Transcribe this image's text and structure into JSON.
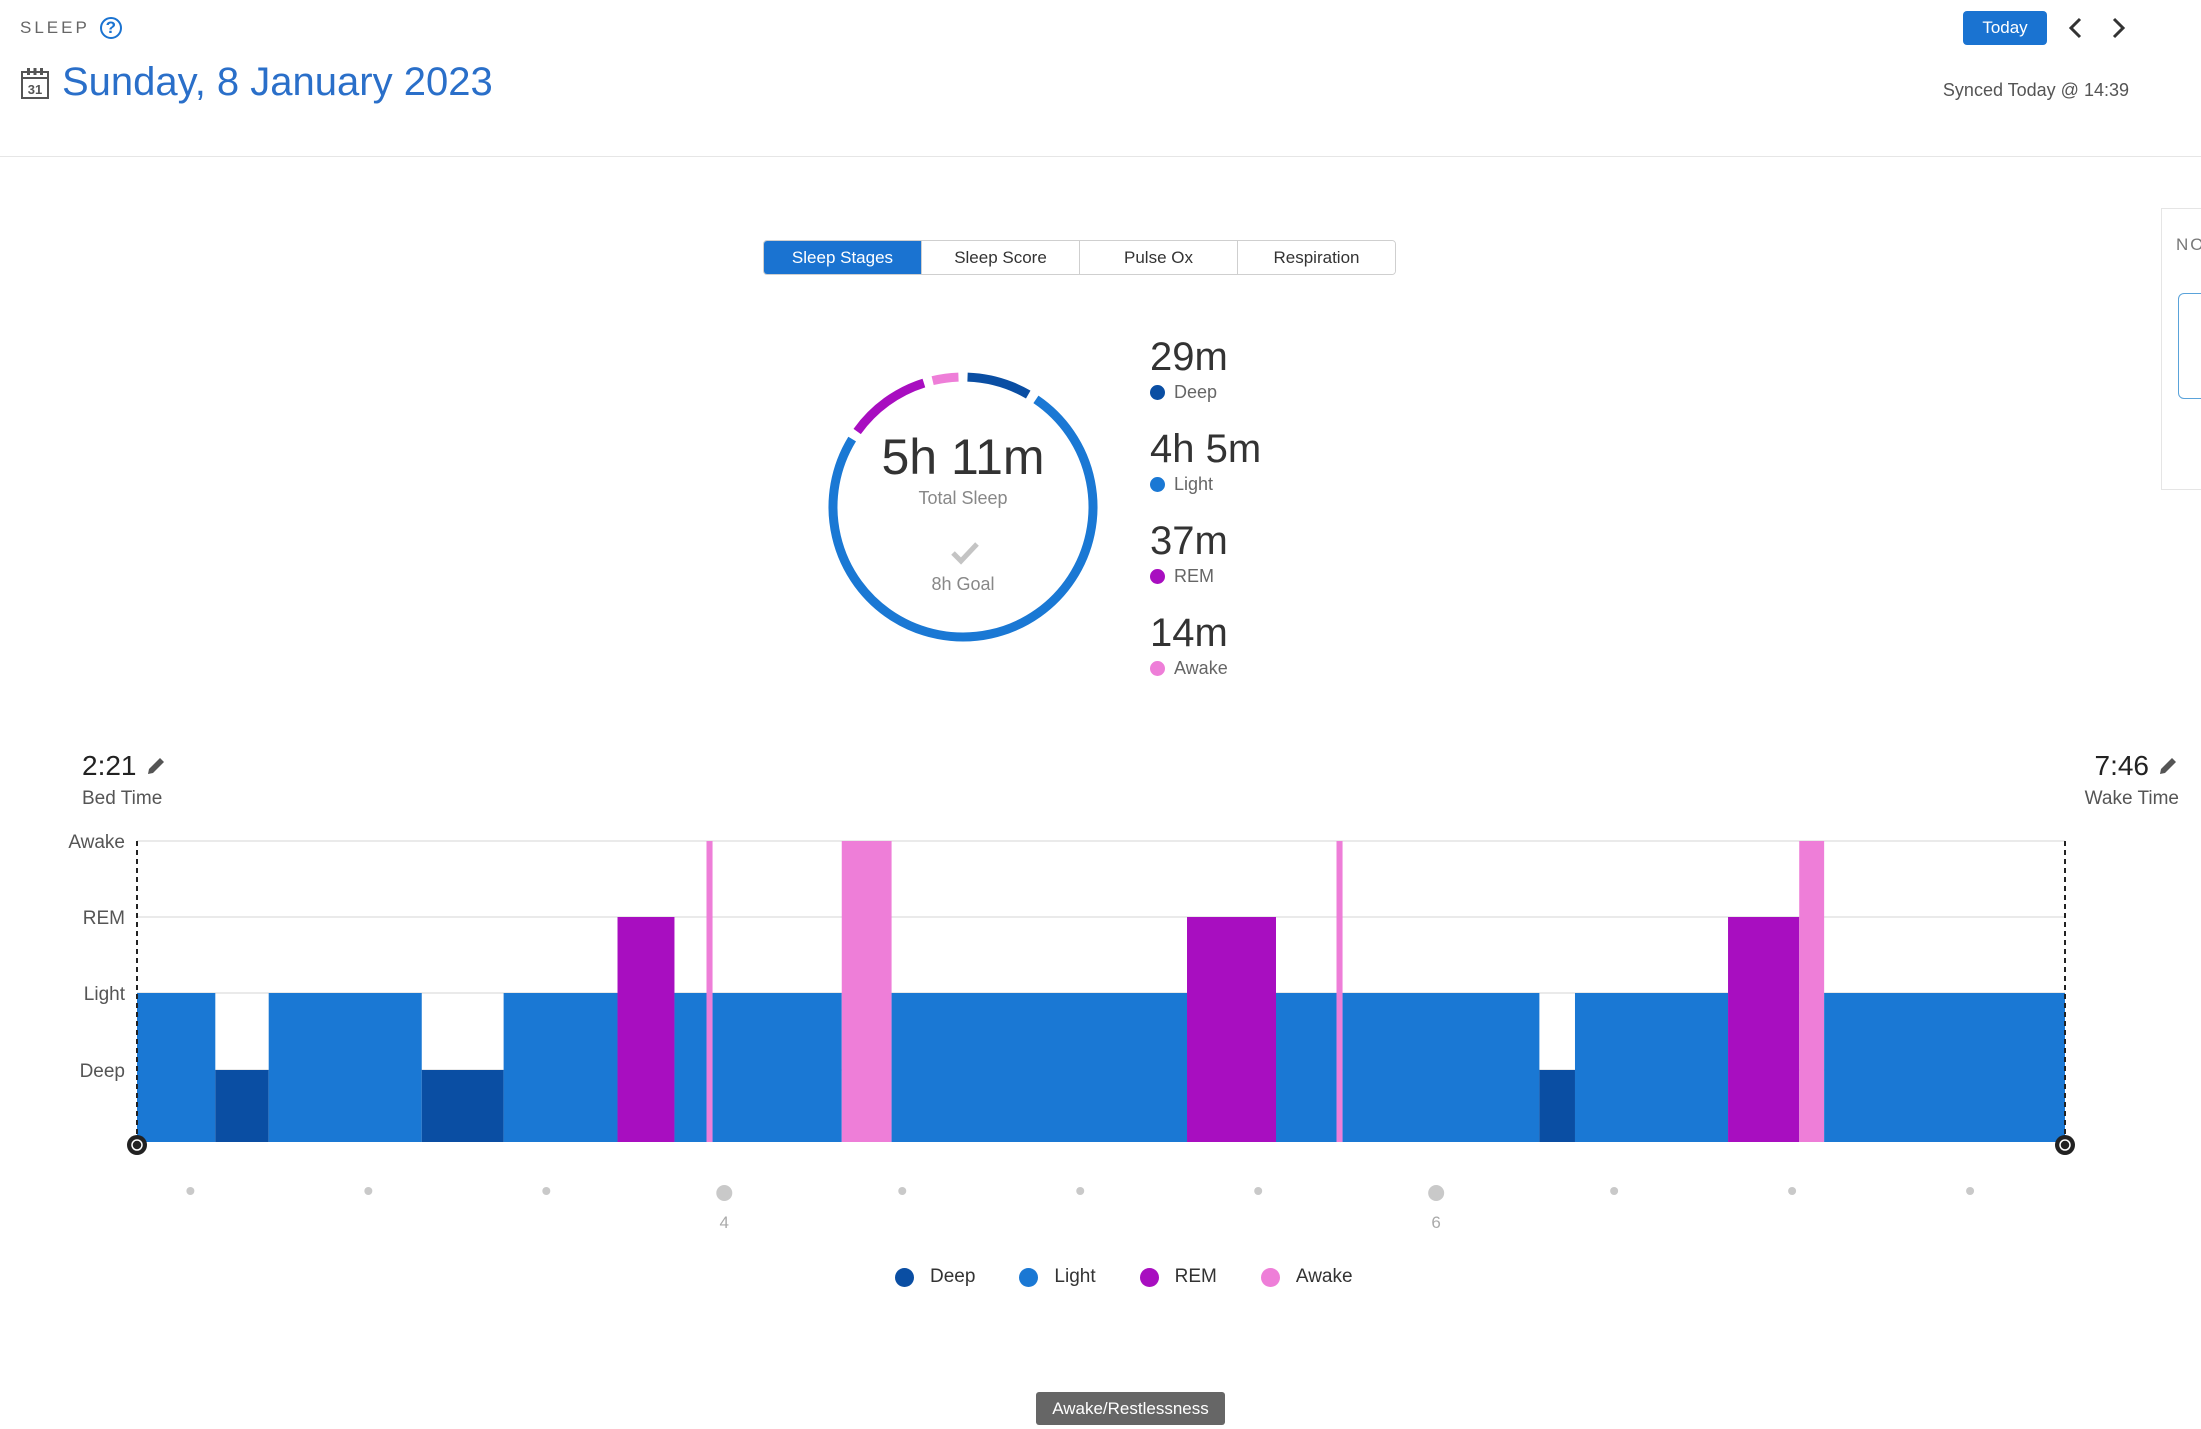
{
  "header": {
    "section_label": "SLEEP",
    "help_icon": "?",
    "calendar_day": "31",
    "date": "Sunday, 8 January 2023",
    "today_label": "Today",
    "synced": "Synced Today @ 14:39"
  },
  "tabs": [
    {
      "label": "Sleep Stages",
      "active": true
    },
    {
      "label": "Sleep Score",
      "active": false
    },
    {
      "label": "Pulse Ox",
      "active": false
    },
    {
      "label": "Respiration",
      "active": false
    }
  ],
  "right_panel": {
    "label": "NO"
  },
  "summary": {
    "total": "5h 11m",
    "total_label": "Total Sleep",
    "goal": "8h Goal",
    "stages": [
      {
        "value": "29m",
        "name": "Deep",
        "minutes": 29,
        "color": "#0a4ea3"
      },
      {
        "value": "4h 5m",
        "name": "Light",
        "minutes": 245,
        "color": "#1a78d4"
      },
      {
        "value": "37m",
        "name": "REM",
        "minutes": 37,
        "color": "#a80ec0"
      },
      {
        "value": "14m",
        "name": "Awake",
        "minutes": 14,
        "color": "#ee7ed8"
      }
    ]
  },
  "times": {
    "bed_time": "2:21",
    "bed_label": "Bed Time",
    "wake_time": "7:46",
    "wake_label": "Wake Time"
  },
  "chart_data": {
    "type": "bar",
    "levels": [
      "Deep",
      "Light",
      "REM",
      "Awake"
    ],
    "x_unit": "hours",
    "x_range": [
      2.35,
      7.7667
    ],
    "x_ticks": [
      "4",
      "6"
    ],
    "segments": [
      {
        "start": 2.35,
        "end": 2.57,
        "stage": "Light"
      },
      {
        "start": 2.57,
        "end": 2.72,
        "stage": "Deep"
      },
      {
        "start": 2.72,
        "end": 3.15,
        "stage": "Light"
      },
      {
        "start": 3.15,
        "end": 3.38,
        "stage": "Deep"
      },
      {
        "start": 3.38,
        "end": 3.7,
        "stage": "Light"
      },
      {
        "start": 3.7,
        "end": 3.86,
        "stage": "REM"
      },
      {
        "start": 3.86,
        "end": 3.95,
        "stage": "Light"
      },
      {
        "start": 3.95,
        "end": 3.967,
        "stage": "Awake"
      },
      {
        "start": 3.967,
        "end": 4.33,
        "stage": "Light"
      },
      {
        "start": 4.33,
        "end": 4.47,
        "stage": "Awake"
      },
      {
        "start": 4.47,
        "end": 5.3,
        "stage": "Light"
      },
      {
        "start": 5.3,
        "end": 5.55,
        "stage": "REM"
      },
      {
        "start": 5.55,
        "end": 5.72,
        "stage": "Light"
      },
      {
        "start": 5.72,
        "end": 5.737,
        "stage": "Awake"
      },
      {
        "start": 5.737,
        "end": 6.29,
        "stage": "Light"
      },
      {
        "start": 6.29,
        "end": 6.39,
        "stage": "Deep"
      },
      {
        "start": 6.39,
        "end": 6.82,
        "stage": "Light"
      },
      {
        "start": 6.82,
        "end": 7.02,
        "stage": "REM"
      },
      {
        "start": 7.02,
        "end": 7.09,
        "stage": "Awake"
      },
      {
        "start": 7.09,
        "end": 7.7667,
        "stage": "Light"
      }
    ]
  },
  "legend": [
    {
      "name": "Deep",
      "color": "#0a4ea3"
    },
    {
      "name": "Light",
      "color": "#1a78d4"
    },
    {
      "name": "REM",
      "color": "#a80ec0"
    },
    {
      "name": "Awake",
      "color": "#ee7ed8"
    }
  ],
  "tooltip": "Awake/Restlessness"
}
